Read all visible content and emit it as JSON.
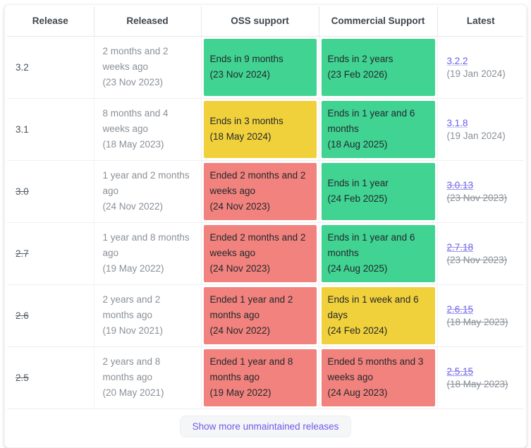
{
  "colors": {
    "green": "#41d392",
    "yellow": "#f1d13b",
    "red": "#f2827d",
    "link_purple": "#6a5ce8"
  },
  "footer": {
    "show_more_label": "Show more unmaintained releases"
  },
  "table": {
    "columns": [
      "Release",
      "Released",
      "OSS support",
      "Commercial Support",
      "Latest"
    ],
    "rows": [
      {
        "release": "3.2",
        "unmaintained": false,
        "released": {
          "relative": "2 months and 2 weeks ago",
          "date": "(23 Nov 2023)"
        },
        "oss": {
          "status": "green",
          "text": "Ends in 9 months",
          "date": "(23 Nov 2024)"
        },
        "commercial": {
          "status": "green",
          "text": "Ends in 2 years",
          "date": "(23 Feb 2026)"
        },
        "latest": {
          "version": "3.2.2",
          "date": "(19 Jan 2024)"
        }
      },
      {
        "release": "3.1",
        "unmaintained": false,
        "released": {
          "relative": "8 months and 4 weeks ago",
          "date": "(18 May 2023)"
        },
        "oss": {
          "status": "yellow",
          "text": "Ends in 3 months",
          "date": "(18 May 2024)"
        },
        "commercial": {
          "status": "green",
          "text": "Ends in 1 year and 6 months",
          "date": "(18 Aug 2025)"
        },
        "latest": {
          "version": "3.1.8",
          "date": "(19 Jan 2024)"
        }
      },
      {
        "release": "3.0",
        "unmaintained": true,
        "released": {
          "relative": "1 year and 2 months ago",
          "date": "(24 Nov 2022)"
        },
        "oss": {
          "status": "red",
          "text": "Ended 2 months and 2 weeks ago",
          "date": "(24 Nov 2023)"
        },
        "commercial": {
          "status": "green",
          "text": "Ends in 1 year",
          "date": "(24 Feb 2025)"
        },
        "latest": {
          "version": "3.0.13",
          "date": "(23 Nov 2023)"
        }
      },
      {
        "release": "2.7",
        "unmaintained": true,
        "released": {
          "relative": "1 year and 8 months ago",
          "date": "(19 May 2022)"
        },
        "oss": {
          "status": "red",
          "text": "Ended 2 months and 2 weeks ago",
          "date": "(24 Nov 2023)"
        },
        "commercial": {
          "status": "green",
          "text": "Ends in 1 year and 6 months",
          "date": "(24 Aug 2025)"
        },
        "latest": {
          "version": "2.7.18",
          "date": "(23 Nov 2023)"
        }
      },
      {
        "release": "2.6",
        "unmaintained": true,
        "released": {
          "relative": "2 years and 2 months ago",
          "date": "(19 Nov 2021)"
        },
        "oss": {
          "status": "red",
          "text": "Ended 1 year and 2 months ago",
          "date": "(24 Nov 2022)"
        },
        "commercial": {
          "status": "yellow",
          "text": "Ends in 1 week and 6 days",
          "date": "(24 Feb 2024)"
        },
        "latest": {
          "version": "2.6.15",
          "date": "(18 May 2023)"
        }
      },
      {
        "release": "2.5",
        "unmaintained": true,
        "released": {
          "relative": "2 years and 8 months ago",
          "date": "(20 May 2021)"
        },
        "oss": {
          "status": "red",
          "text": "Ended 1 year and 8 months ago",
          "date": "(19 May 2022)"
        },
        "commercial": {
          "status": "red",
          "text": "Ended 5 months and 3 weeks ago",
          "date": "(24 Aug 2023)"
        },
        "latest": {
          "version": "2.5.15",
          "date": "(18 May 2023)"
        }
      }
    ]
  }
}
